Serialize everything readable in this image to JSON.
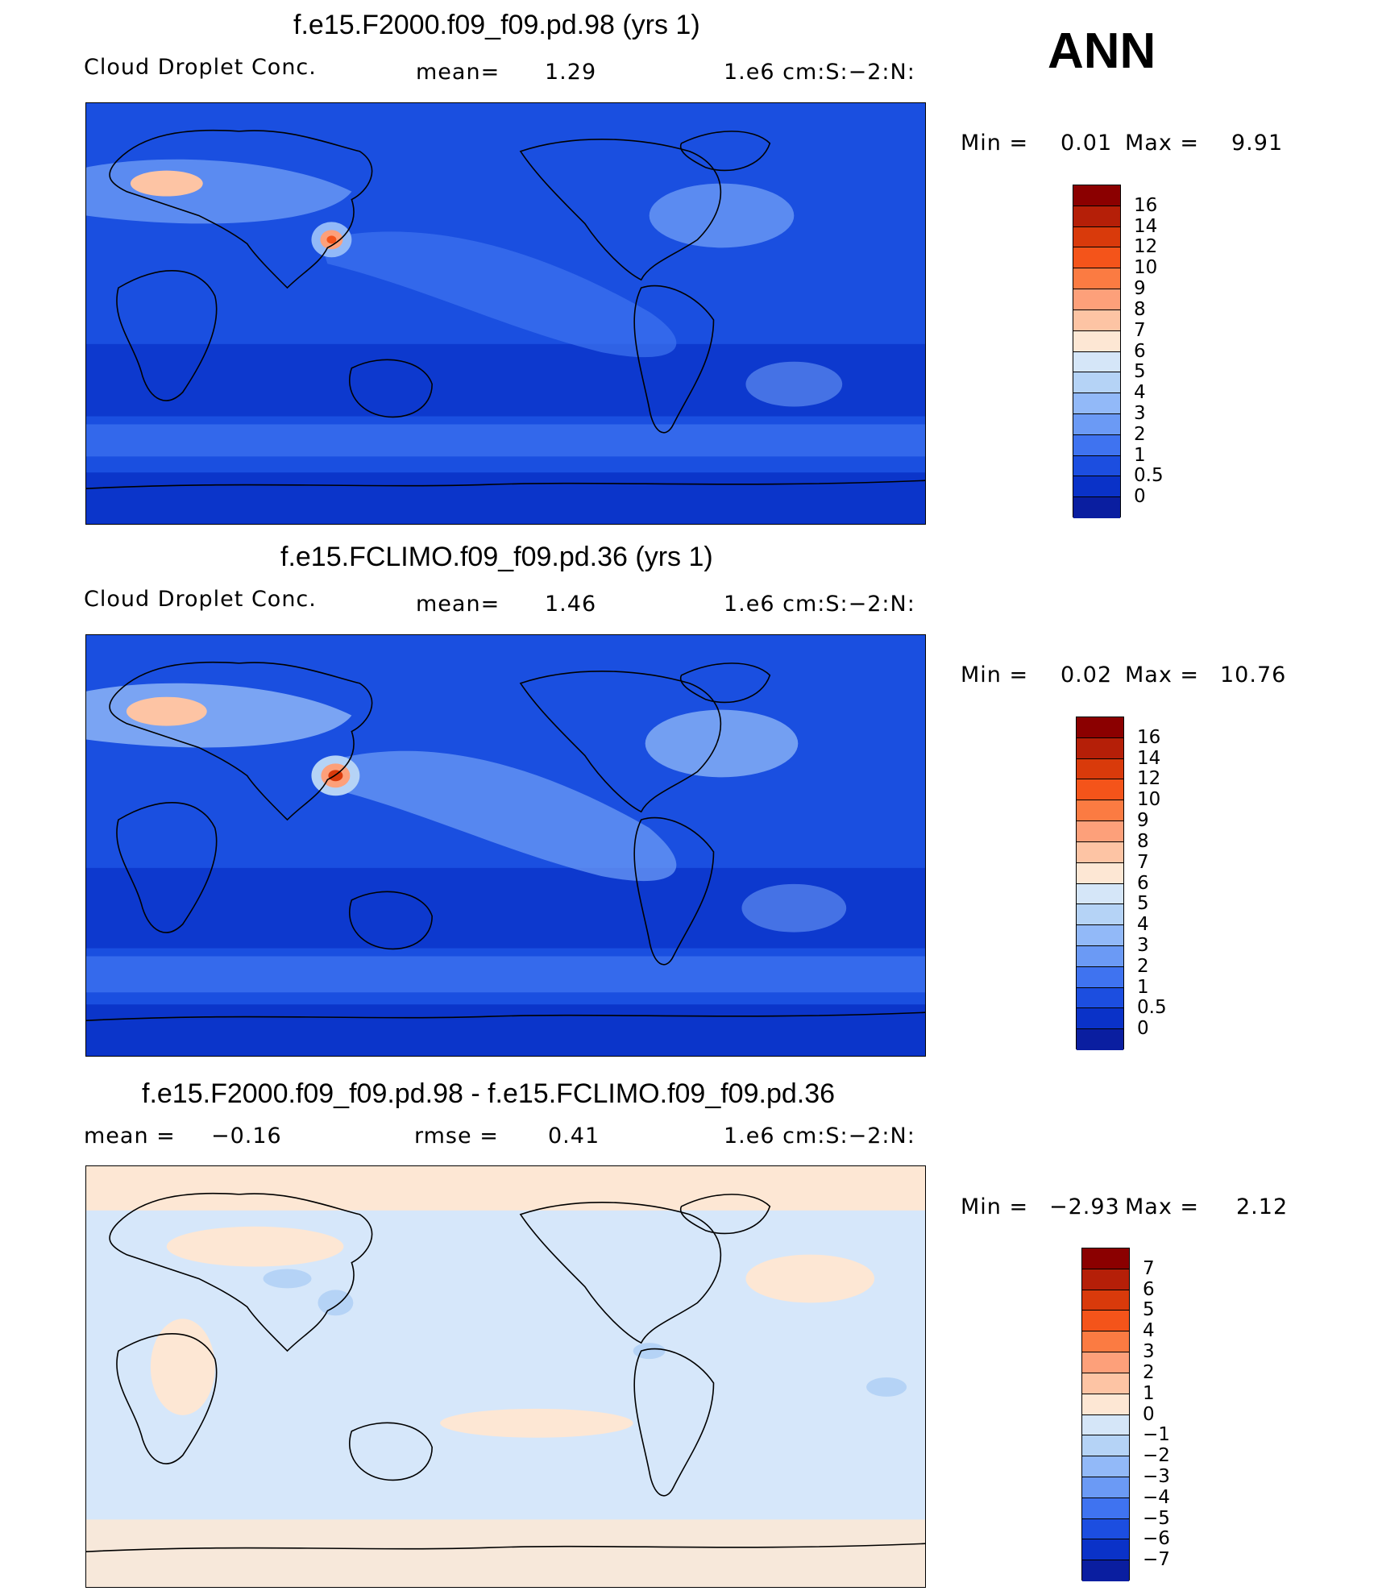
{
  "season": "ANN",
  "panels": [
    {
      "title": "f.e15.F2000.f09_f09.pd.98 (yrs 1)",
      "left_label": "Cloud Droplet Conc.",
      "mid_label": "mean=",
      "mid_value": "1.29",
      "units": "1.e6 cm:S:−2:N:",
      "min_label": "Min =",
      "min_value": "0.01",
      "max_label": "Max =",
      "max_value": "9.91",
      "map_background": "#1a4fe0",
      "colorbar": {
        "labels": [
          "16",
          "14",
          "12",
          "10",
          "9",
          "8",
          "7",
          "6",
          "5",
          "4",
          "3",
          "2",
          "1",
          "0.5",
          "0"
        ],
        "colors": [
          "#8b0000",
          "#b51f08",
          "#d93a0b",
          "#f4541a",
          "#fb7b42",
          "#fda07a",
          "#fdc4a4",
          "#fde7d4",
          "#d5e6f8",
          "#b5d3f6",
          "#92b9f8",
          "#6b9af5",
          "#3f73f0",
          "#1c4ee0",
          "#0a32c8",
          "#0a1ea0"
        ]
      }
    },
    {
      "title": "f.e15.FCLIMO.f09_f09.pd.36 (yrs 1)",
      "left_label": "Cloud Droplet Conc.",
      "mid_label": "mean=",
      "mid_value": "1.46",
      "units": "1.e6 cm:S:−2:N:",
      "min_label": "Min =",
      "min_value": "0.02",
      "max_label": "Max =",
      "max_value": "10.76",
      "map_background": "#1a4fe0",
      "colorbar": {
        "labels": [
          "16",
          "14",
          "12",
          "10",
          "9",
          "8",
          "7",
          "6",
          "5",
          "4",
          "3",
          "2",
          "1",
          "0.5",
          "0"
        ],
        "colors": [
          "#8b0000",
          "#b51f08",
          "#d93a0b",
          "#f4541a",
          "#fb7b42",
          "#fda07a",
          "#fdc4a4",
          "#fde7d4",
          "#d5e6f8",
          "#b5d3f6",
          "#92b9f8",
          "#6b9af5",
          "#3f73f0",
          "#1c4ee0",
          "#0a32c8",
          "#0a1ea0"
        ]
      }
    },
    {
      "title": "f.e15.F2000.f09_f09.pd.98 - f.e15.FCLIMO.f09_f09.pd.36",
      "left_label": "mean =",
      "left_value": "−0.16",
      "mid_label": "rmse =",
      "mid_value": "0.41",
      "units": "1.e6 cm:S:−2:N:",
      "min_label": "Min =",
      "min_value": "−2.93",
      "max_label": "Max =",
      "max_value": "2.12",
      "map_background": "#d6e7fa",
      "colorbar": {
        "labels": [
          "7",
          "6",
          "5",
          "4",
          "3",
          "2",
          "1",
          "0",
          "−1",
          "−2",
          "−3",
          "−4",
          "−5",
          "−6",
          "−7"
        ],
        "colors": [
          "#8b0000",
          "#b51f08",
          "#d93a0b",
          "#f4541a",
          "#fb7b42",
          "#fda07a",
          "#fdc4a4",
          "#fde7d4",
          "#d5e6f8",
          "#b5d3f6",
          "#92b9f8",
          "#6b9af5",
          "#3f73f0",
          "#1c4ee0",
          "#0a32c8",
          "#0a1ea0"
        ]
      }
    }
  ]
}
